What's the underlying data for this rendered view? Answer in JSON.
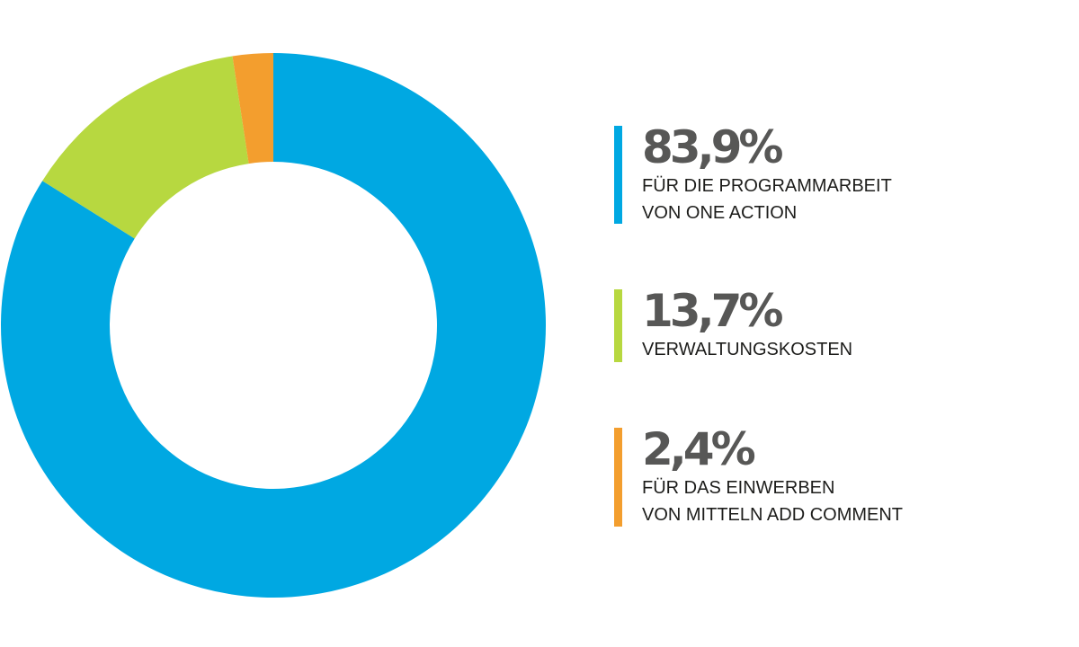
{
  "chart_data": {
    "type": "pie",
    "variant": "donut",
    "start_position": "top, clockwise",
    "legend_position": "right",
    "slices": [
      {
        "label": "FÜR DIE PROGRAMMARBEIT\nVON ONE ACTION",
        "value": 83.9,
        "value_label": "83,9%",
        "color": "#00A8E2"
      },
      {
        "label": "VERWALTUNGSKOSTEN",
        "value": 13.7,
        "value_label": "13,7%",
        "color": "#B7D840"
      },
      {
        "label": "FÜR DAS EINWERBEN\nVON MITTELN ADD COMMENT",
        "value": 2.4,
        "value_label": "2,4%",
        "color": "#F39E2E"
      }
    ]
  }
}
